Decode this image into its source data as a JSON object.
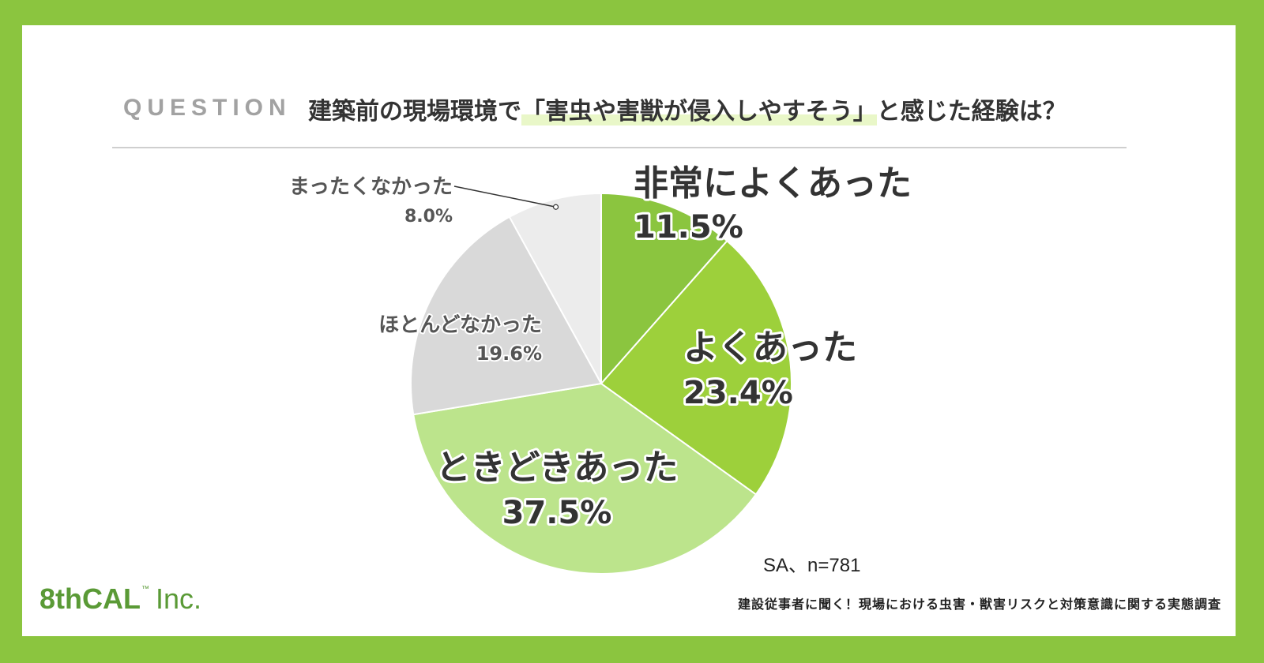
{
  "header": {
    "label": "QUESTION",
    "question_before": "建築前の現場環境で",
    "question_highlight": "「害虫や害獣が侵入しやすそう」",
    "question_after": "と感じた経験は？"
  },
  "note": "SA、n=781",
  "logo": {
    "main": "8thCAL",
    "tm": "™",
    "suffix": "Inc."
  },
  "footer_caption": "建設従事者に聞く！現場における虫害・獣害リスクと対策意識に関する実態調査",
  "colors": {
    "frame": "#8bc53f",
    "slice_1": "#8bc53f",
    "slice_2": "#9dd03b",
    "slice_3": "#bce48c",
    "slice_4": "#d9d9d9",
    "slice_5": "#ececec"
  },
  "chart_data": {
    "type": "pie",
    "title": "建築前の現場環境で「害虫や害獣が侵入しやすそう」と感じた経験は？",
    "start_angle": "12 o'clock",
    "direction": "clockwise",
    "slices": [
      {
        "label": "非常によくあった",
        "value": 11.5,
        "display": "11.5%",
        "color": "#8bc53f"
      },
      {
        "label": "よくあった",
        "value": 23.4,
        "display": "23.4%",
        "color": "#9dd03b"
      },
      {
        "label": "ときどきあった",
        "value": 37.5,
        "display": "37.5%",
        "color": "#bce48c"
      },
      {
        "label": "ほとんどなかった",
        "value": 19.6,
        "display": "19.6%",
        "color": "#d9d9d9"
      },
      {
        "label": "まったくなかった",
        "value": 8.0,
        "display": "8.0%",
        "color": "#ececec"
      }
    ]
  }
}
